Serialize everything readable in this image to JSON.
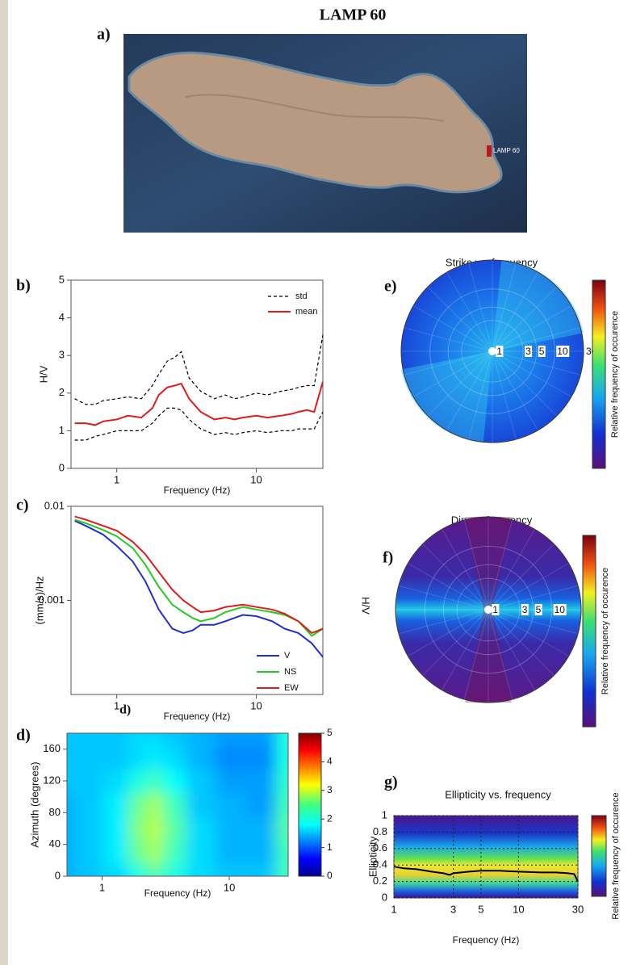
{
  "figure": {
    "title": "LAMP 60",
    "map_panel": "a)",
    "map_station": "LAMP 60"
  },
  "chart_data": [
    {
      "type": "line",
      "panel": "b)",
      "x_label": "Frequency (Hz)",
      "y_label": "H/V",
      "xscale": "log",
      "xlim": [
        0.47,
        30
      ],
      "xticks": [
        1,
        10
      ],
      "ylim": [
        0,
        5
      ],
      "yticks": [
        0,
        1,
        2,
        3,
        4,
        5
      ],
      "legend": "upper right",
      "x": [
        0.5,
        0.6,
        0.7,
        0.8,
        1,
        1.2,
        1.5,
        1.8,
        2,
        2.3,
        2.6,
        2.9,
        3.3,
        4,
        5,
        6,
        7,
        8,
        10,
        12,
        15,
        18,
        20,
        23,
        26,
        30
      ],
      "series": [
        {
          "name": "std",
          "color": "#000000",
          "dash": true,
          "values": [
            1.85,
            1.7,
            1.7,
            1.8,
            1.85,
            1.9,
            1.85,
            2.2,
            2.5,
            2.85,
            2.95,
            3.1,
            2.4,
            2.05,
            1.85,
            1.95,
            1.85,
            1.9,
            2.0,
            1.95,
            2.05,
            2.1,
            2.15,
            2.2,
            2.2,
            3.55
          ],
          "lower_values": [
            0.75,
            0.75,
            0.85,
            0.9,
            1.0,
            1.0,
            1.0,
            1.2,
            1.4,
            1.6,
            1.6,
            1.55,
            1.3,
            1.05,
            0.9,
            0.95,
            0.9,
            0.95,
            1.0,
            0.95,
            1.0,
            1.0,
            1.05,
            1.05,
            1.05,
            1.5
          ]
        },
        {
          "name": "mean",
          "color": "#e31a1c",
          "values": [
            1.2,
            1.2,
            1.15,
            1.25,
            1.3,
            1.4,
            1.35,
            1.6,
            1.95,
            2.15,
            2.2,
            2.25,
            1.85,
            1.5,
            1.3,
            1.35,
            1.3,
            1.35,
            1.4,
            1.35,
            1.4,
            1.45,
            1.5,
            1.55,
            1.5,
            2.3
          ]
        }
      ]
    },
    {
      "type": "line",
      "panel": "c)",
      "annotation": "d)",
      "x_label": "Frequency (Hz)",
      "y_label": "(mm/s)/Hz",
      "xscale": "log",
      "yscale": "log",
      "xlim": [
        0.47,
        30
      ],
      "xticks": [
        1,
        10
      ],
      "ylim": [
        0.0001,
        0.01
      ],
      "yticks": [
        0.001,
        0.01
      ],
      "legend": "lower right",
      "x": [
        0.5,
        0.6,
        0.8,
        1,
        1.3,
        1.6,
        2,
        2.5,
        3,
        3.5,
        4,
        5,
        6,
        8,
        10,
        13,
        16,
        20,
        25,
        30
      ],
      "series": [
        {
          "name": "V",
          "color": "#1f2fd0",
          "values": [
            0.007,
            0.0062,
            0.005,
            0.0038,
            0.0026,
            0.0016,
            0.0008,
            0.0005,
            0.00045,
            0.00048,
            0.00055,
            0.00055,
            0.0006,
            0.0007,
            0.00068,
            0.0006,
            0.0005,
            0.00045,
            0.00035,
            0.00025
          ]
        },
        {
          "name": "NS",
          "color": "#22cc22",
          "values": [
            0.0072,
            0.0066,
            0.0056,
            0.0048,
            0.0036,
            0.0024,
            0.0014,
            0.0009,
            0.00075,
            0.00065,
            0.0006,
            0.00065,
            0.00075,
            0.00085,
            0.0008,
            0.00075,
            0.0007,
            0.0006,
            0.00042,
            0.0005
          ]
        },
        {
          "name": "EW",
          "color": "#e31a1c",
          "values": [
            0.0078,
            0.0072,
            0.0062,
            0.0055,
            0.0042,
            0.0031,
            0.002,
            0.0013,
            0.001,
            0.00085,
            0.00075,
            0.00078,
            0.00085,
            0.0009,
            0.00085,
            0.0008,
            0.00072,
            0.0006,
            0.00045,
            0.0005
          ]
        }
      ]
    },
    {
      "type": "heatmap",
      "panel": "d)",
      "x_label": "Frequency (Hz)",
      "y_label": "Azimuth (degrees)",
      "xscale": "log",
      "xlim": [
        0.53,
        29
      ],
      "xticks": [
        1,
        10
      ],
      "ylim": [
        0,
        180
      ],
      "yticks": [
        0,
        40,
        80,
        120,
        160
      ],
      "clim": [
        0,
        5
      ],
      "cticks": [
        0,
        1,
        2,
        3,
        4,
        5
      ],
      "x": [
        0.5,
        0.8,
        1.3,
        2,
        2.6,
        3.5,
        6,
        10,
        18,
        30
      ],
      "y": [
        0,
        30,
        60,
        90,
        120,
        150,
        180
      ],
      "z": [
        [
          1.5,
          1.6,
          1.7,
          2.0,
          2.3,
          2.0,
          1.7,
          1.6,
          1.6,
          2.2
        ],
        [
          1.5,
          1.6,
          1.8,
          2.4,
          2.7,
          2.2,
          1.7,
          1.5,
          1.5,
          2.2
        ],
        [
          1.5,
          1.6,
          1.8,
          2.5,
          2.8,
          2.3,
          1.7,
          1.5,
          1.5,
          2.3
        ],
        [
          1.5,
          1.6,
          1.8,
          2.4,
          2.7,
          2.2,
          1.6,
          1.5,
          1.4,
          2.2
        ],
        [
          1.6,
          1.6,
          1.7,
          2.0,
          2.2,
          1.9,
          1.6,
          1.4,
          1.4,
          2.1
        ],
        [
          1.6,
          1.6,
          1.6,
          1.7,
          1.8,
          1.7,
          1.5,
          1.3,
          1.3,
          2.0
        ],
        [
          1.6,
          1.6,
          1.6,
          1.7,
          1.7,
          1.6,
          1.5,
          1.4,
          1.4,
          2.0
        ]
      ]
    },
    {
      "type": "polar",
      "panel": "e)",
      "title": "Strike vs. frequency",
      "colorbar_label": "Relative frequency of occurence",
      "rscale": "log",
      "rlim": [
        0.93,
        30
      ],
      "rticks": [
        1,
        3,
        5,
        10,
        30
      ],
      "style": "strike"
    },
    {
      "type": "polar",
      "panel": "f)",
      "title": "Dip vs. frequency",
      "side_label": "H/V",
      "colorbar_label": "Relative frequency of occurence",
      "rscale": "log",
      "rlim": [
        0.93,
        30
      ],
      "rticks": [
        1,
        3,
        5,
        10,
        30
      ],
      "style": "dip"
    },
    {
      "type": "line",
      "panel": "g)",
      "title": "Ellipticity vs. frequency",
      "x_label": "Frequency (Hz)",
      "y_label": "Ellipticity",
      "colorbar_label": "Relative frequency of occurence",
      "xscale": "log",
      "background": "density",
      "xlim": [
        1,
        30
      ],
      "xticks": [
        1,
        3,
        5,
        10,
        30
      ],
      "ylim": [
        0,
        1
      ],
      "yticks": [
        0,
        0.2,
        0.4,
        0.6,
        0.8,
        1
      ],
      "x": [
        1,
        1.2,
        1.5,
        2,
        2.5,
        2.8,
        3,
        4,
        5,
        7,
        10,
        15,
        20,
        25,
        28,
        30
      ],
      "series": [
        {
          "color": "#000000",
          "values": [
            0.38,
            0.36,
            0.35,
            0.32,
            0.3,
            0.28,
            0.3,
            0.32,
            0.33,
            0.33,
            0.32,
            0.31,
            0.31,
            0.3,
            0.29,
            0.2
          ]
        }
      ]
    }
  ]
}
